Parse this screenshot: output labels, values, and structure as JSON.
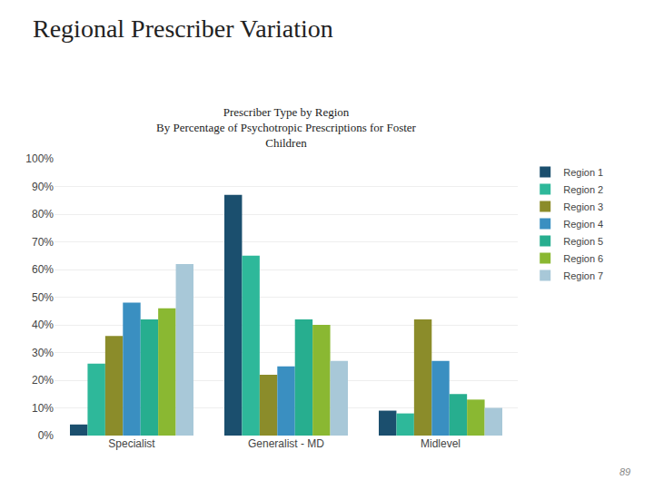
{
  "chart_data": {
    "type": "bar",
    "title": "Regional Prescriber Variation",
    "subtitle": "Prescriber Type by Region\nBy Percentage of Psychotropic Prescriptions for Foster\nChildren",
    "categories": [
      "Specialist",
      "Generalist - MD",
      "Midlevel"
    ],
    "series": [
      {
        "name": "Region 1",
        "color": "#1b4f6e",
        "values": [
          4,
          87,
          9
        ]
      },
      {
        "name": "Region 2",
        "color": "#2eb89a",
        "values": [
          26,
          65,
          8
        ]
      },
      {
        "name": "Region 3",
        "color": "#8b8c2a",
        "values": [
          36,
          22,
          42
        ]
      },
      {
        "name": "Region 4",
        "color": "#3a8fc1",
        "values": [
          48,
          25,
          27
        ]
      },
      {
        "name": "Region 5",
        "color": "#27ae8f",
        "values": [
          42,
          42,
          15
        ]
      },
      {
        "name": "Region 6",
        "color": "#8ab832",
        "values": [
          46,
          40,
          13
        ]
      },
      {
        "name": "Region 7",
        "color": "#a8c8d8",
        "values": [
          62,
          27,
          10
        ]
      }
    ],
    "ylim": [
      0,
      100
    ],
    "yticks": [
      {
        "value": 0,
        "label": "0%"
      },
      {
        "value": 10,
        "label": "10%"
      },
      {
        "value": 20,
        "label": "20%"
      },
      {
        "value": 30,
        "label": "30%"
      },
      {
        "value": 40,
        "label": "40%"
      },
      {
        "value": 50,
        "label": "50%"
      },
      {
        "value": 60,
        "label": "60%"
      },
      {
        "value": 70,
        "label": "70%"
      },
      {
        "value": 80,
        "label": "80%"
      },
      {
        "value": 90,
        "label": "90%"
      },
      {
        "value": 100,
        "label": "100%"
      }
    ],
    "grid": true,
    "legend": "right",
    "annotations": [
      {
        "text": "89"
      }
    ]
  }
}
